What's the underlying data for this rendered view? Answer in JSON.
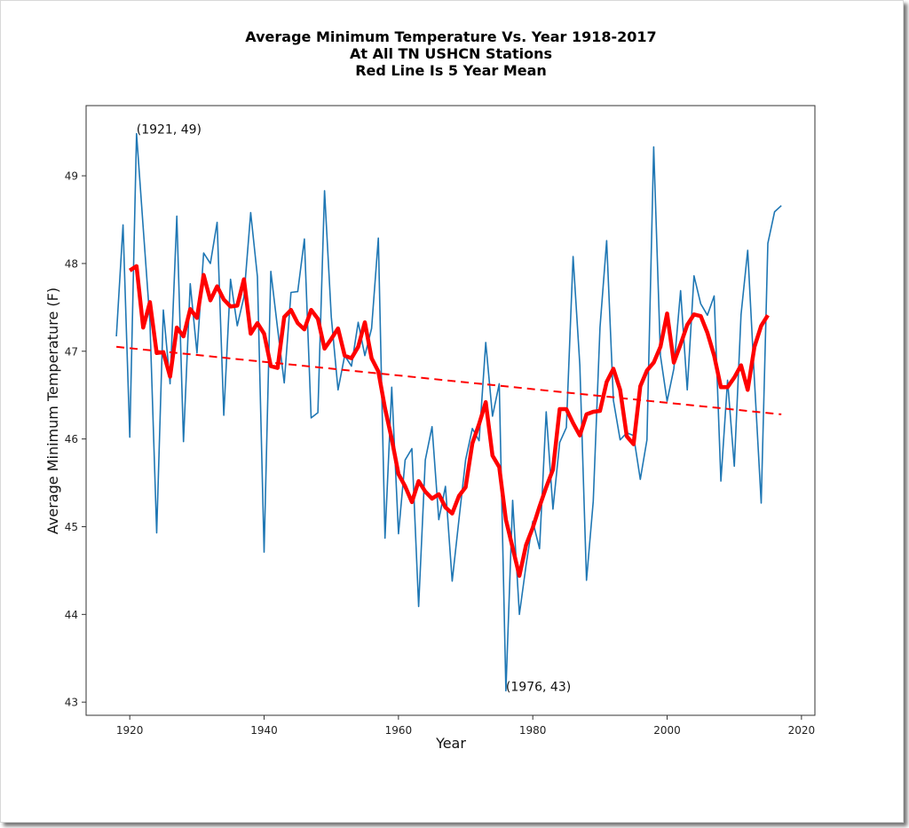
{
  "chart_data": {
    "type": "line",
    "title_lines": [
      "Average Minimum Temperature Vs. Year 1918-2017",
      "At All TN USHCN Stations",
      "Red Line Is 5 Year Mean"
    ],
    "xlabel": "Year",
    "ylabel": "Average Minimum Temperature (F)",
    "xlim": [
      1913.5,
      2022
    ],
    "ylim": [
      42.85,
      49.8
    ],
    "xticks": [
      1920,
      1940,
      1960,
      1980,
      2000,
      2020
    ],
    "yticks": [
      43,
      44,
      45,
      46,
      47,
      48,
      49
    ],
    "grid": false,
    "legend": "none",
    "colors": {
      "annual": "#1f77b4",
      "mean": "#ff0000",
      "trend": "#ff0000"
    },
    "series": [
      {
        "name": "Annual average minimum temperature",
        "style": "solid-thin",
        "x": [
          1918,
          1919,
          1920,
          1921,
          1922,
          1923,
          1924,
          1925,
          1926,
          1927,
          1928,
          1929,
          1930,
          1931,
          1932,
          1933,
          1934,
          1935,
          1936,
          1937,
          1938,
          1939,
          1940,
          1941,
          1942,
          1943,
          1944,
          1945,
          1946,
          1947,
          1948,
          1949,
          1950,
          1951,
          1952,
          1953,
          1954,
          1955,
          1956,
          1957,
          1958,
          1959,
          1960,
          1961,
          1962,
          1963,
          1964,
          1965,
          1966,
          1967,
          1968,
          1969,
          1970,
          1971,
          1972,
          1973,
          1974,
          1975,
          1976,
          1977,
          1978,
          1979,
          1980,
          1981,
          1982,
          1983,
          1984,
          1985,
          1986,
          1987,
          1988,
          1989,
          1990,
          1991,
          1992,
          1993,
          1994,
          1995,
          1996,
          1997,
          1998,
          1999,
          2000,
          2001,
          2002,
          2003,
          2004,
          2005,
          2006,
          2007,
          2008,
          2009,
          2010,
          2011,
          2012,
          2013,
          2014,
          2015,
          2016,
          2017
        ],
        "values": [
          47.17,
          48.44,
          46.02,
          49.48,
          48.41,
          47.34,
          44.93,
          47.47,
          46.63,
          48.54,
          45.97,
          47.77,
          46.98,
          48.12,
          48.0,
          48.47,
          46.27,
          47.82,
          47.29,
          47.62,
          48.58,
          47.85,
          44.71,
          47.91,
          47.26,
          46.64,
          47.67,
          47.68,
          48.28,
          46.24,
          46.3,
          48.83,
          47.39,
          46.56,
          46.95,
          46.83,
          47.33,
          46.95,
          47.26,
          48.29,
          44.87,
          46.59,
          44.92,
          45.76,
          45.89,
          44.09,
          45.76,
          46.14,
          45.08,
          45.46,
          44.38,
          45.08,
          45.76,
          46.12,
          45.98,
          47.1,
          46.26,
          46.63,
          43.13,
          45.3,
          44.0,
          44.56,
          45.06,
          44.75,
          46.31,
          45.2,
          45.96,
          46.13,
          48.08,
          46.84,
          44.39,
          45.29,
          47.27,
          48.26,
          46.44,
          45.99,
          46.07,
          46.04,
          45.54,
          45.99,
          49.33,
          46.95,
          46.43,
          46.8,
          47.69,
          46.56,
          47.86,
          47.54,
          47.41,
          47.63,
          45.52,
          46.67,
          45.69,
          47.42,
          48.15,
          46.67,
          45.27,
          48.23,
          48.59,
          48.66
        ]
      },
      {
        "name": "5 Year Mean",
        "style": "solid-thick",
        "x": [
          1920,
          1921,
          1922,
          1923,
          1924,
          1925,
          1926,
          1927,
          1928,
          1929,
          1930,
          1931,
          1932,
          1933,
          1934,
          1935,
          1936,
          1937,
          1938,
          1939,
          1940,
          1941,
          1942,
          1943,
          1944,
          1945,
          1946,
          1947,
          1948,
          1949,
          1950,
          1951,
          1952,
          1953,
          1954,
          1955,
          1956,
          1957,
          1958,
          1959,
          1960,
          1961,
          1962,
          1963,
          1964,
          1965,
          1966,
          1967,
          1968,
          1969,
          1970,
          1971,
          1972,
          1973,
          1974,
          1975,
          1976,
          1977,
          1978,
          1979,
          1980,
          1981,
          1982,
          1983,
          1984,
          1985,
          1986,
          1987,
          1988,
          1989,
          1990,
          1991,
          1992,
          1993,
          1994,
          1995,
          1996,
          1997,
          1998,
          1999,
          2000,
          2001,
          2002,
          2003,
          2004,
          2005,
          2006,
          2007,
          2008,
          2009,
          2010,
          2011,
          2012,
          2013,
          2014,
          2015
        ],
        "values": [
          47.92,
          47.97,
          47.27,
          47.56,
          46.98,
          46.99,
          46.71,
          47.27,
          47.17,
          47.48,
          47.38,
          47.87,
          47.58,
          47.74,
          47.59,
          47.51,
          47.52,
          47.82,
          47.2,
          47.32,
          47.2,
          46.83,
          46.81,
          47.39,
          47.47,
          47.32,
          47.25,
          47.47,
          47.37,
          47.03,
          47.14,
          47.26,
          46.95,
          46.92,
          47.05,
          47.33,
          46.92,
          46.77,
          46.35,
          46.0,
          45.6,
          45.46,
          45.28,
          45.52,
          45.4,
          45.32,
          45.37,
          45.22,
          45.15,
          45.35,
          45.45,
          45.95,
          46.17,
          46.42,
          45.81,
          45.68,
          45.08,
          44.76,
          44.44,
          44.79,
          44.99,
          45.23,
          45.45,
          45.65,
          46.34,
          46.34,
          46.18,
          46.04,
          46.28,
          46.31,
          46.32,
          46.65,
          46.8,
          46.56,
          46.03,
          45.94,
          46.6,
          46.78,
          46.87,
          47.05,
          47.43,
          46.87,
          47.08,
          47.3,
          47.42,
          47.4,
          47.21,
          46.95,
          46.59,
          46.59,
          46.7,
          46.84,
          46.56,
          47.05,
          47.29,
          47.41
        ]
      },
      {
        "name": "Linear trend",
        "style": "dashed",
        "x": [
          1918,
          2017
        ],
        "values": [
          47.05,
          46.28
        ]
      }
    ],
    "annotations": [
      {
        "text": "(1921, 49)",
        "x": 1921,
        "y": 49.48,
        "anchor": "start"
      },
      {
        "text": "(1976, 43)",
        "x": 1976,
        "y": 43.13,
        "anchor": "start"
      }
    ]
  }
}
